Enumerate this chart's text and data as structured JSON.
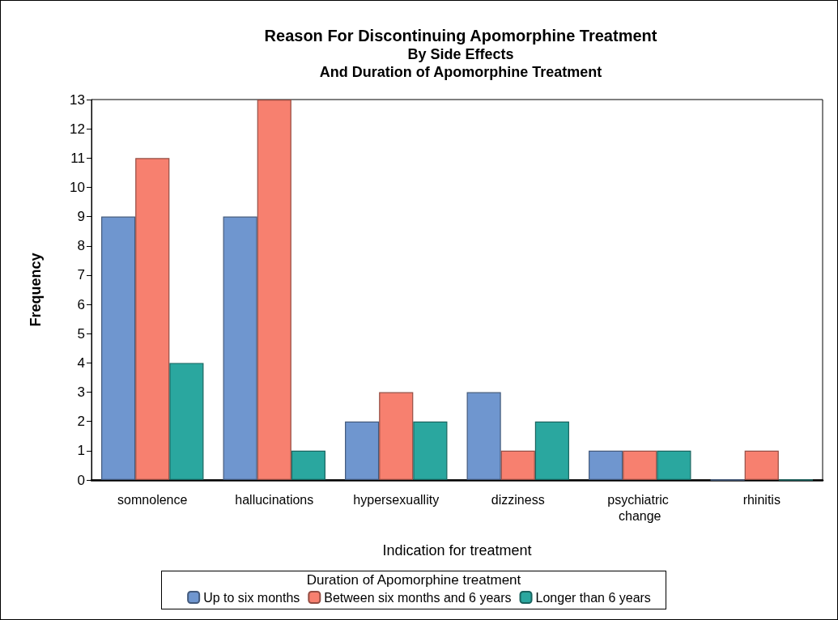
{
  "chart_data": {
    "type": "bar",
    "title": "Reason For Discontinuing Apomorphine Treatment",
    "subtitle": "By Side Effects\nAnd Duration of Apomorphine Treatment",
    "xlabel": "Indication for treatment",
    "ylabel": "Frequency",
    "legend_title": "Duration of Apomorphine treatment",
    "legend": "bottom",
    "grid": false,
    "categories": [
      "somnolence",
      "hallucinations",
      "hypersexuallity",
      "dizziness",
      "psychiatric change",
      "rhinitis"
    ],
    "ylim": [
      0,
      13
    ],
    "yticks": [
      0,
      1,
      2,
      3,
      4,
      5,
      6,
      7,
      8,
      9,
      10,
      11,
      12,
      13
    ],
    "series": [
      {
        "name": "Up to six months",
        "color": "#6f96cf",
        "values": [
          9,
          9,
          2,
          3,
          1,
          0
        ]
      },
      {
        "name": "Between six months and 6 years",
        "color": "#f7806f",
        "values": [
          11,
          13,
          3,
          1,
          1,
          1
        ]
      },
      {
        "name": "Longer than 6 years",
        "color": "#2aa79f",
        "values": [
          4,
          1,
          2,
          2,
          1,
          0
        ]
      }
    ]
  }
}
